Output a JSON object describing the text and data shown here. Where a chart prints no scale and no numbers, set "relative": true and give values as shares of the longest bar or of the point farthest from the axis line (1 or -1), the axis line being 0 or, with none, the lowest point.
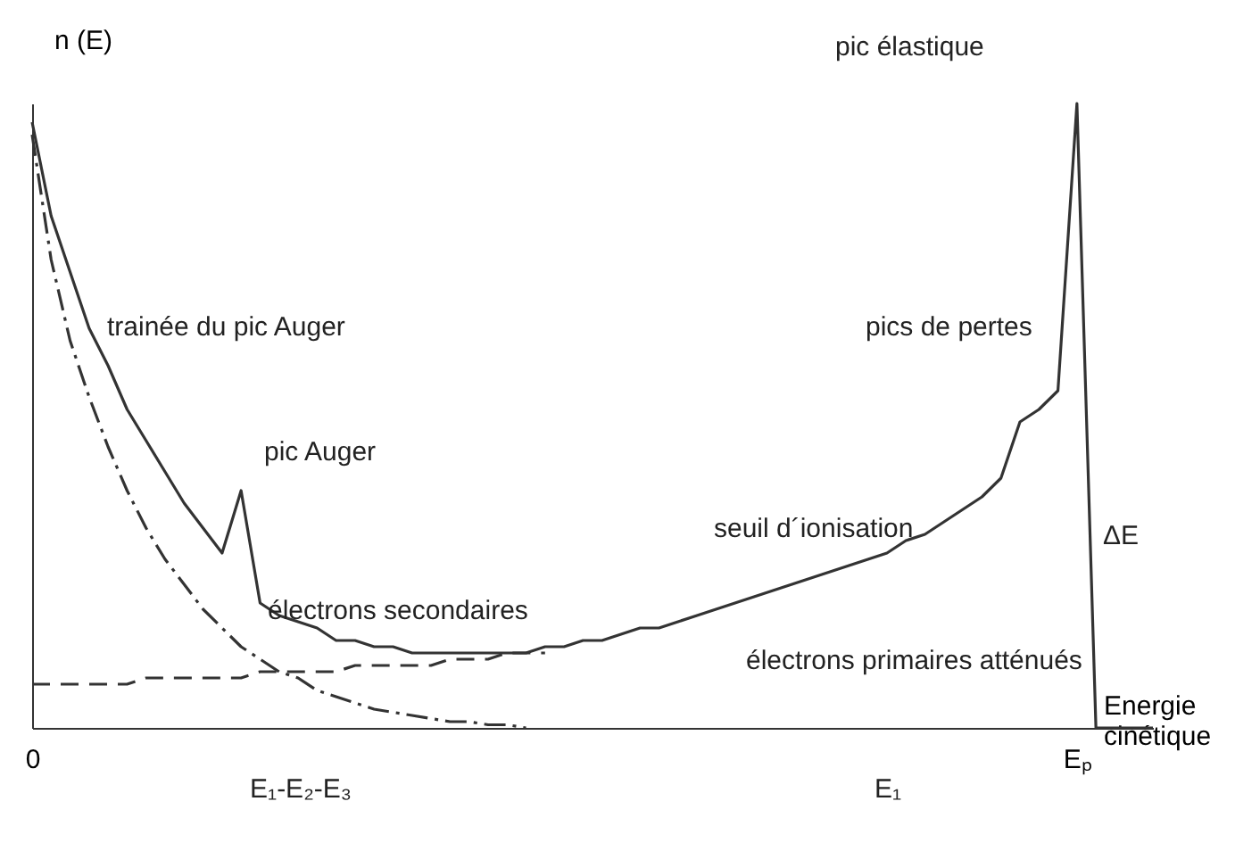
{
  "chart_data": {
    "type": "line",
    "relative": true,
    "xlabel": "Energie cinétique",
    "ylabel": "n (E)",
    "categories": [
      "0",
      null,
      null,
      null,
      null,
      null,
      null,
      null,
      null,
      null,
      null,
      null,
      null,
      null,
      null,
      null,
      null,
      null,
      null,
      null,
      null,
      null,
      null,
      null,
      null,
      null,
      null,
      null,
      null,
      null,
      null,
      null,
      null,
      null,
      null,
      null,
      null,
      null,
      null,
      null,
      null,
      null,
      null,
      null,
      null,
      null,
      null,
      null,
      null,
      null,
      null,
      null,
      null,
      null,
      null,
      "Eₚ",
      null,
      null,
      null,
      null
    ],
    "series": [
      {
        "color": "#333333",
        "line_style": "solid",
        "values": [
          0.97,
          0.82,
          0.73,
          0.64,
          0.58,
          0.51,
          0.46,
          0.41,
          0.36,
          0.32,
          0.28,
          0.38,
          0.2,
          0.18,
          0.17,
          0.16,
          0.14,
          0.14,
          0.13,
          0.13,
          0.12,
          0.12,
          0.12,
          0.12,
          0.12,
          0.12,
          0.12,
          0.13,
          0.13,
          0.14,
          0.14,
          0.15,
          0.16,
          0.16,
          0.17,
          0.18,
          0.19,
          0.2,
          0.21,
          0.22,
          0.23,
          0.24,
          0.25,
          0.26,
          0.27,
          0.28,
          0.3,
          0.31,
          0.33,
          0.35,
          0.37,
          0.4,
          0.49,
          0.51,
          0.54,
          1,
          0,
          0,
          0,
          0
        ]
      },
      {
        "color": "#333333",
        "line_style": "dashed",
        "values": [
          0.07,
          0.07,
          0.07,
          0.07,
          0.07,
          0.07,
          0.08,
          0.08,
          0.08,
          0.08,
          0.08,
          0.08,
          0.09,
          0.09,
          0.09,
          0.09,
          0.09,
          0.1,
          0.1,
          0.1,
          0.1,
          0.1,
          0.11,
          0.11,
          0.11,
          0.12,
          0.12,
          0.12,
          null,
          null,
          null,
          null,
          null,
          null,
          null,
          null,
          null,
          null,
          null,
          null,
          null,
          null,
          null,
          null,
          null,
          null,
          null,
          null,
          null,
          null,
          null,
          null,
          null,
          null,
          null,
          null,
          null,
          null,
          null,
          null
        ]
      },
      {
        "color": "#333333",
        "line_style": "dotted",
        "values": [
          0.95,
          0.75,
          0.62,
          0.53,
          0.45,
          0.38,
          0.32,
          0.27,
          0.23,
          0.19,
          0.16,
          0.13,
          0.11,
          0.09,
          0.08,
          0.06,
          0.05,
          0.04,
          0.03,
          0.025,
          0.02,
          0.015,
          0.01,
          0.01,
          0.005,
          0.005,
          0,
          null,
          null,
          null,
          null,
          null,
          null,
          null,
          null,
          null,
          null,
          null,
          null,
          null,
          null,
          null,
          null,
          null,
          null,
          null,
          null,
          null,
          null,
          null,
          null,
          null,
          null,
          null,
          null,
          null,
          null,
          null,
          null,
          null
        ]
      }
    ],
    "annotations": [
      "pic élastique",
      "trainée du pic Auger",
      "pic Auger",
      "pics de pertes",
      "seuil d´ionisation",
      "électrons secondaires",
      "électrons primaires atténués",
      "ΔE",
      "E₁-E₂-E₃",
      "E₁"
    ]
  }
}
